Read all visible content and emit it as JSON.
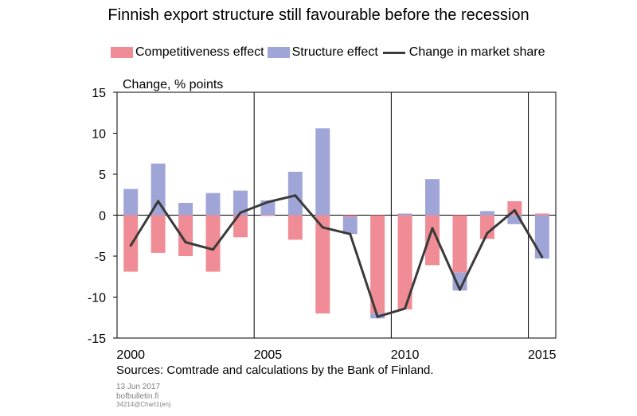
{
  "colors": {
    "competitiveness": "#f08c96",
    "structure": "#a0a5d7",
    "line": "#3a3a3a",
    "grid": "#000000"
  },
  "chart_data": {
    "type": "bar",
    "title": "Finnish export structure still favourable before the recession",
    "ylabel": "Change, % points",
    "ylim": [
      -15,
      15
    ],
    "yticks": [
      15,
      10,
      5,
      0,
      -5,
      -10,
      -15
    ],
    "xlim": [
      1999.5,
      2015.5
    ],
    "xtick_labels": [
      "2000",
      "2005",
      "2010",
      "2015"
    ],
    "x_gridlines": [
      2004.5,
      2009.5,
      2014.5
    ],
    "grid": true,
    "legend_position": "top",
    "years": [
      2000,
      2001,
      2002,
      2003,
      2004,
      2005,
      2006,
      2007,
      2008,
      2009,
      2010,
      2011,
      2012,
      2013,
      2014,
      2015
    ],
    "series": [
      {
        "name": "Competitiveness effect",
        "kind": "stacked-bar",
        "values": [
          -6.9,
          -4.6,
          -5.0,
          -6.9,
          -2.7,
          -0.1,
          -3.0,
          -12.0,
          -0.2,
          -12.0,
          -11.5,
          -6.1,
          -7.0,
          -2.9,
          1.7,
          0.2
        ]
      },
      {
        "name": "Structure effect",
        "kind": "stacked-bar",
        "values": [
          3.2,
          6.3,
          1.5,
          2.7,
          3.0,
          1.8,
          5.3,
          10.6,
          -2.1,
          -0.6,
          0.2,
          4.4,
          -2.2,
          0.5,
          -1.1,
          -5.3
        ]
      },
      {
        "name": "Change in market share",
        "kind": "line",
        "values": [
          -3.7,
          1.7,
          -3.3,
          -4.2,
          0.3,
          1.6,
          2.4,
          -1.5,
          -2.3,
          -12.4,
          -11.4,
          -1.6,
          -9.1,
          -2.2,
          0.6,
          -5.1
        ]
      }
    ]
  },
  "source_text": "Sources: Comtrade and calculations by the Bank of Finland.",
  "footer": {
    "date": "13 Jun 2017",
    "site": "bofbulletin.fi",
    "chart_id": "34214@Chart1(en)"
  }
}
